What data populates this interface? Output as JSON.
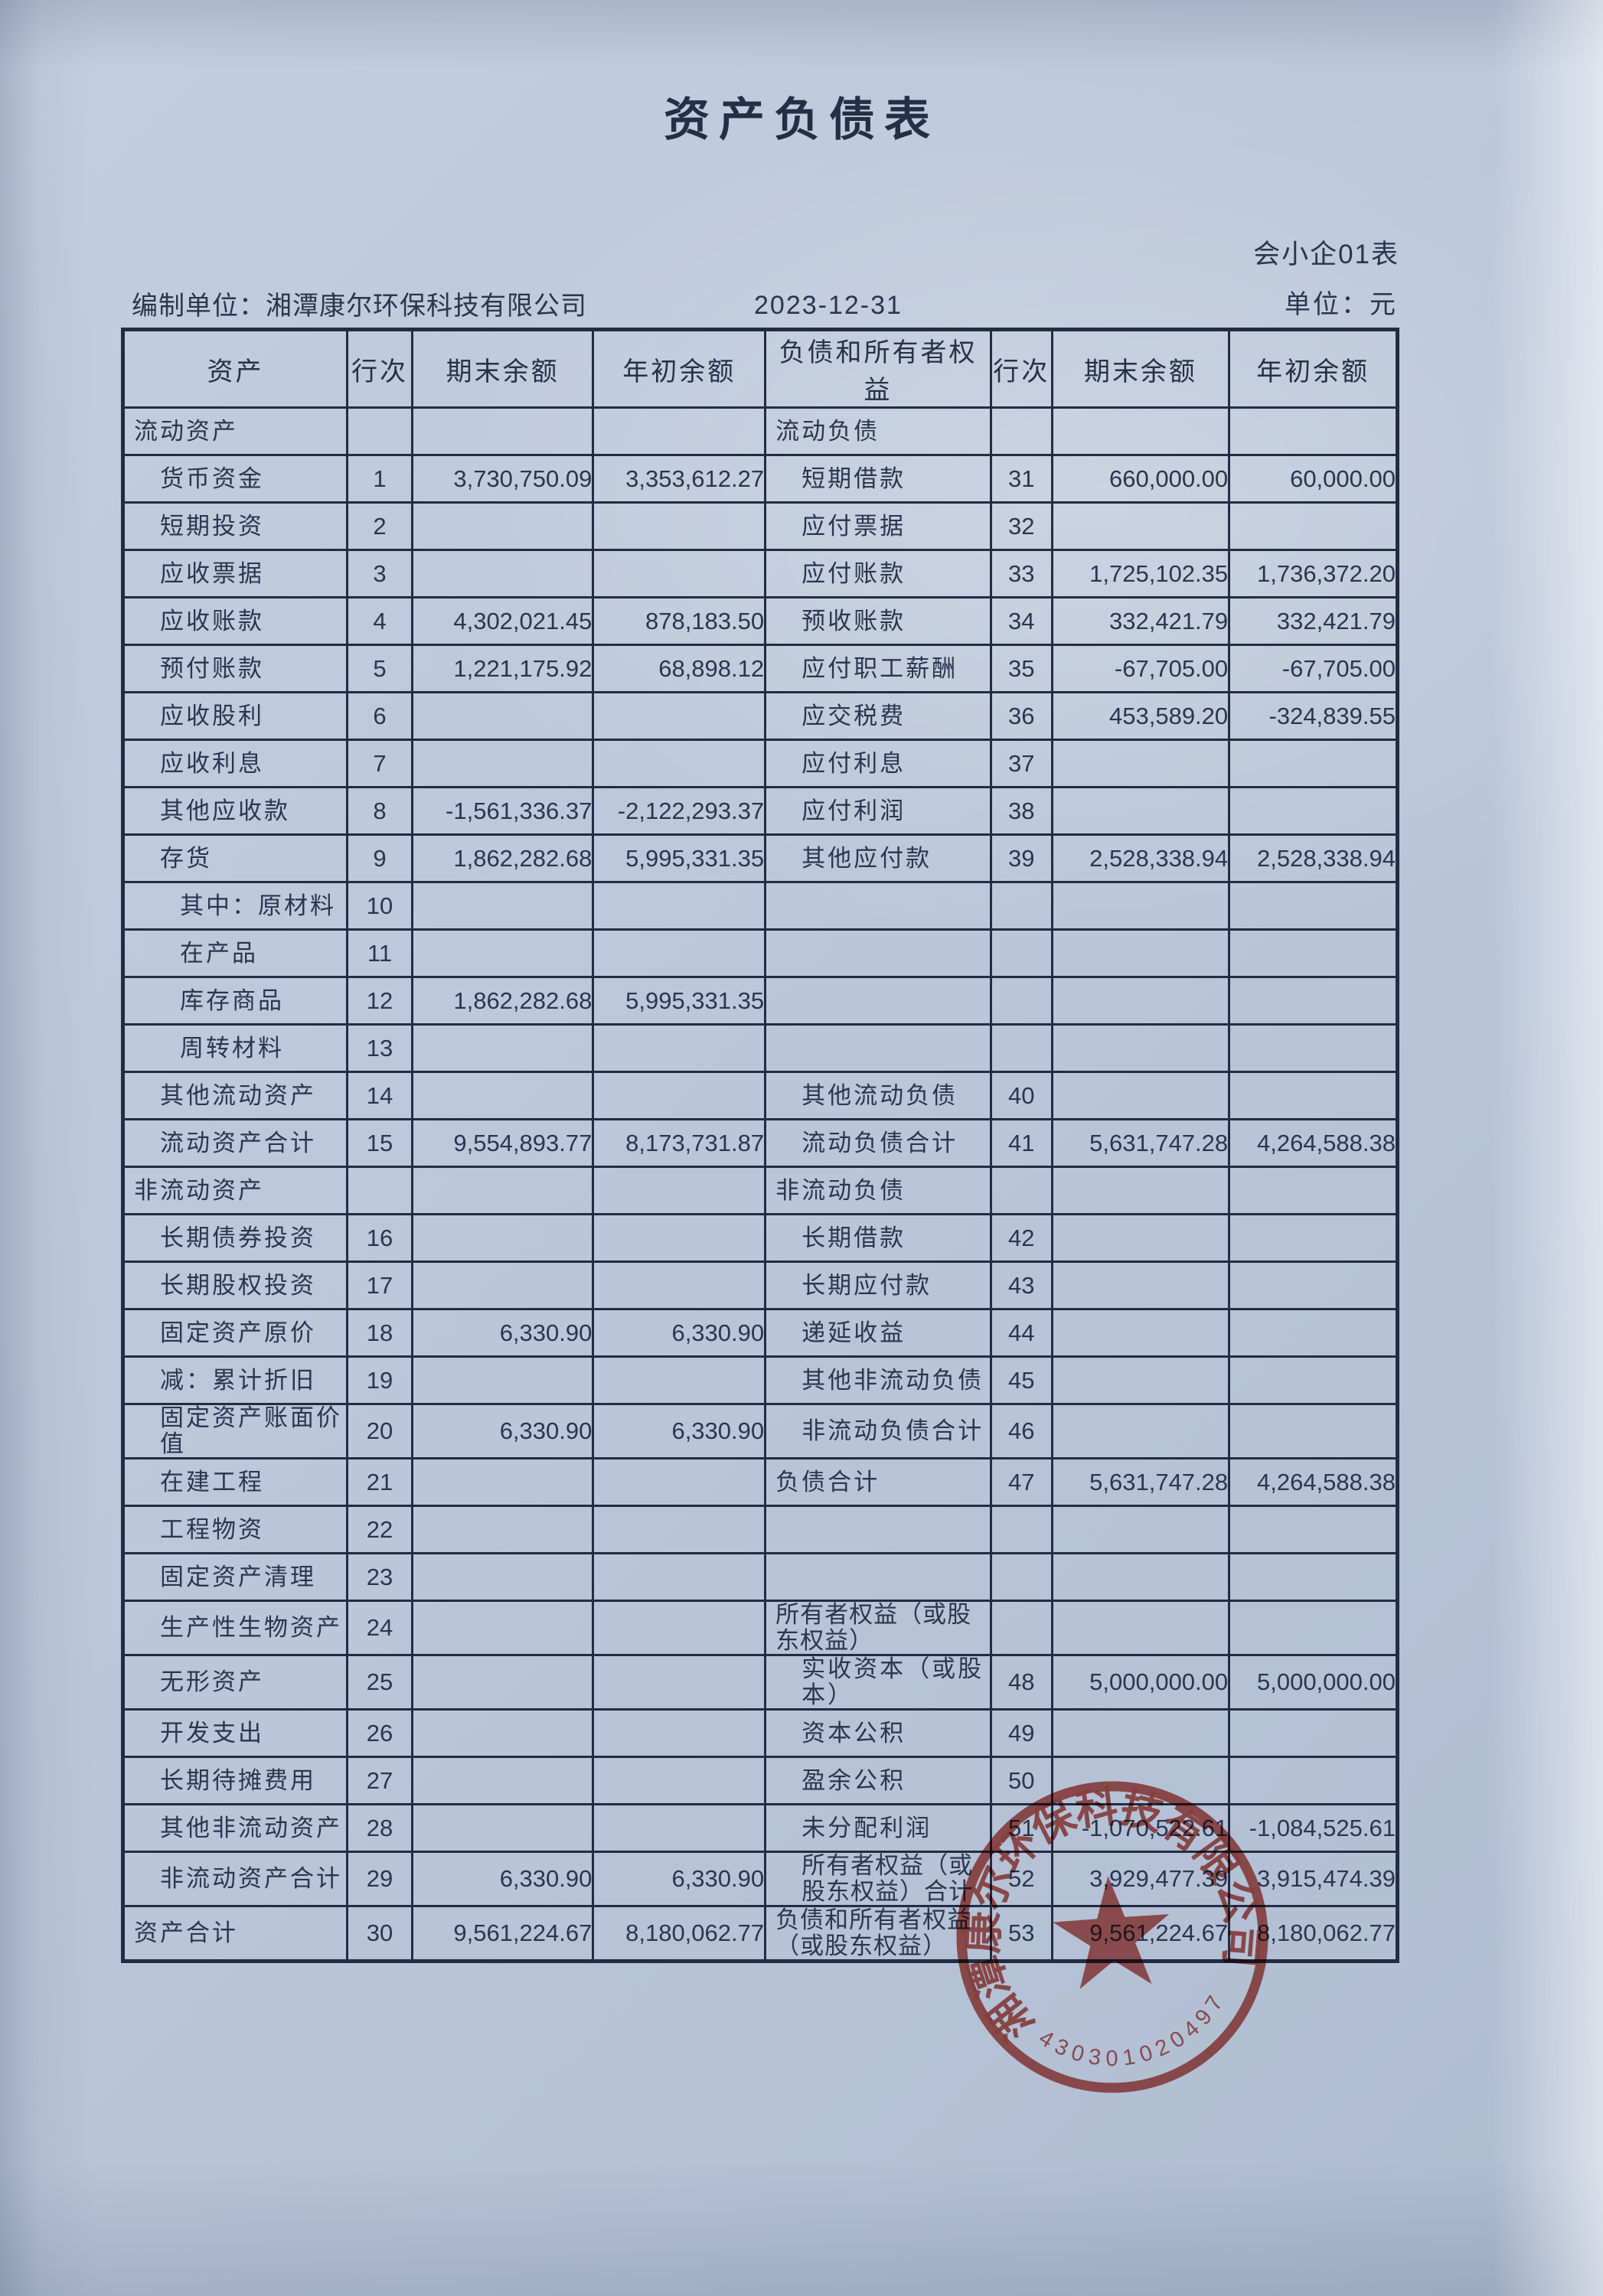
{
  "page": {
    "title": "资产负债表",
    "form_no": "会小企01表",
    "prepared_by_label": "编制单位：",
    "prepared_by": "湘潭康尔环保科技有限公司",
    "report_date": "2023-12-31",
    "unit_label": "单位：元"
  },
  "table": {
    "headers": [
      "资产",
      "行次",
      "期末余额",
      "年初余额",
      "负债和所有者权益",
      "行次",
      "期末余额",
      "年初余额"
    ],
    "rows": [
      {
        "a": "流动资产",
        "ai": 0,
        "ar": "",
        "ae": "",
        "ab": "",
        "l": "流动负债",
        "li": 0,
        "lr": "",
        "le": "",
        "lb": ""
      },
      {
        "a": "货币资金",
        "ai": 1,
        "ar": "1",
        "ae": "3,730,750.09",
        "ab": "3,353,612.27",
        "l": "短期借款",
        "li": 1,
        "lr": "31",
        "le": "660,000.00",
        "lb": "60,000.00"
      },
      {
        "a": "短期投资",
        "ai": 1,
        "ar": "2",
        "ae": "",
        "ab": "",
        "l": "应付票据",
        "li": 1,
        "lr": "32",
        "le": "",
        "lb": ""
      },
      {
        "a": "应收票据",
        "ai": 1,
        "ar": "3",
        "ae": "",
        "ab": "",
        "l": "应付账款",
        "li": 1,
        "lr": "33",
        "le": "1,725,102.35",
        "lb": "1,736,372.20"
      },
      {
        "a": "应收账款",
        "ai": 1,
        "ar": "4",
        "ae": "4,302,021.45",
        "ab": "878,183.50",
        "l": "预收账款",
        "li": 1,
        "lr": "34",
        "le": "332,421.79",
        "lb": "332,421.79"
      },
      {
        "a": "预付账款",
        "ai": 1,
        "ar": "5",
        "ae": "1,221,175.92",
        "ab": "68,898.12",
        "l": "应付职工薪酬",
        "li": 1,
        "lr": "35",
        "le": "-67,705.00",
        "lb": "-67,705.00"
      },
      {
        "a": "应收股利",
        "ai": 1,
        "ar": "6",
        "ae": "",
        "ab": "",
        "l": "应交税费",
        "li": 1,
        "lr": "36",
        "le": "453,589.20",
        "lb": "-324,839.55"
      },
      {
        "a": "应收利息",
        "ai": 1,
        "ar": "7",
        "ae": "",
        "ab": "",
        "l": "应付利息",
        "li": 1,
        "lr": "37",
        "le": "",
        "lb": ""
      },
      {
        "a": "其他应收款",
        "ai": 1,
        "ar": "8",
        "ae": "-1,561,336.37",
        "ab": "-2,122,293.37",
        "l": "应付利润",
        "li": 1,
        "lr": "38",
        "le": "",
        "lb": ""
      },
      {
        "a": "存货",
        "ai": 1,
        "ar": "9",
        "ae": "1,862,282.68",
        "ab": "5,995,331.35",
        "l": "其他应付款",
        "li": 1,
        "lr": "39",
        "le": "2,528,338.94",
        "lb": "2,528,338.94"
      },
      {
        "a": "其中：原材料",
        "ai": 2,
        "ar": "10",
        "ae": "",
        "ab": "",
        "l": "",
        "li": 1,
        "lr": "",
        "le": "",
        "lb": ""
      },
      {
        "a": "在产品",
        "ai": 2,
        "ar": "11",
        "ae": "",
        "ab": "",
        "l": "",
        "li": 1,
        "lr": "",
        "le": "",
        "lb": ""
      },
      {
        "a": "库存商品",
        "ai": 2,
        "ar": "12",
        "ae": "1,862,282.68",
        "ab": "5,995,331.35",
        "l": "",
        "li": 1,
        "lr": "",
        "le": "",
        "lb": ""
      },
      {
        "a": "周转材料",
        "ai": 2,
        "ar": "13",
        "ae": "",
        "ab": "",
        "l": "",
        "li": 1,
        "lr": "",
        "le": "",
        "lb": ""
      },
      {
        "a": "其他流动资产",
        "ai": 1,
        "ar": "14",
        "ae": "",
        "ab": "",
        "l": "其他流动负债",
        "li": 1,
        "lr": "40",
        "le": "",
        "lb": ""
      },
      {
        "a": "流动资产合计",
        "ai": 1,
        "ar": "15",
        "ae": "9,554,893.77",
        "ab": "8,173,731.87",
        "l": "流动负债合计",
        "li": 1,
        "lr": "41",
        "le": "5,631,747.28",
        "lb": "4,264,588.38"
      },
      {
        "a": "非流动资产",
        "ai": 0,
        "ar": "",
        "ae": "",
        "ab": "",
        "l": "非流动负债",
        "li": 0,
        "lr": "",
        "le": "",
        "lb": ""
      },
      {
        "a": "长期债券投资",
        "ai": 1,
        "ar": "16",
        "ae": "",
        "ab": "",
        "l": "长期借款",
        "li": 1,
        "lr": "42",
        "le": "",
        "lb": ""
      },
      {
        "a": "长期股权投资",
        "ai": 1,
        "ar": "17",
        "ae": "",
        "ab": "",
        "l": "长期应付款",
        "li": 1,
        "lr": "43",
        "le": "",
        "lb": ""
      },
      {
        "a": "固定资产原价",
        "ai": 1,
        "ar": "18",
        "ae": "6,330.90",
        "ab": "6,330.90",
        "l": "递延收益",
        "li": 1,
        "lr": "44",
        "le": "",
        "lb": ""
      },
      {
        "a": "减：累计折旧",
        "ai": 1,
        "ar": "19",
        "ae": "",
        "ab": "",
        "l": "其他非流动负债",
        "li": 1,
        "lr": "45",
        "le": "",
        "lb": ""
      },
      {
        "a": "固定资产账面价值",
        "ai": 1,
        "ar": "20",
        "ae": "6,330.90",
        "ab": "6,330.90",
        "l": "非流动负债合计",
        "li": 1,
        "lr": "46",
        "le": "",
        "lb": ""
      },
      {
        "a": "在建工程",
        "ai": 1,
        "ar": "21",
        "ae": "",
        "ab": "",
        "l": "负债合计",
        "li": 0,
        "lr": "47",
        "le": "5,631,747.28",
        "lb": "4,264,588.38"
      },
      {
        "a": "工程物资",
        "ai": 1,
        "ar": "22",
        "ae": "",
        "ab": "",
        "l": "",
        "li": 1,
        "lr": "",
        "le": "",
        "lb": ""
      },
      {
        "a": "固定资产清理",
        "ai": 1,
        "ar": "23",
        "ae": "",
        "ab": "",
        "l": "",
        "li": 1,
        "lr": "",
        "le": "",
        "lb": ""
      },
      {
        "a": "生产性生物资产",
        "ai": 1,
        "ar": "24",
        "ae": "",
        "ab": "",
        "l": "所有者权益（或股东权益）",
        "li": 0,
        "lr": "",
        "le": "",
        "lb": ""
      },
      {
        "a": "无形资产",
        "ai": 1,
        "ar": "25",
        "ae": "",
        "ab": "",
        "l": "实收资本（或股本）",
        "li": 1,
        "lr": "48",
        "le": "5,000,000.00",
        "lb": "5,000,000.00"
      },
      {
        "a": "开发支出",
        "ai": 1,
        "ar": "26",
        "ae": "",
        "ab": "",
        "l": "资本公积",
        "li": 1,
        "lr": "49",
        "le": "",
        "lb": ""
      },
      {
        "a": "长期待摊费用",
        "ai": 1,
        "ar": "27",
        "ae": "",
        "ab": "",
        "l": "盈余公积",
        "li": 1,
        "lr": "50",
        "le": "",
        "lb": ""
      },
      {
        "a": "其他非流动资产",
        "ai": 1,
        "ar": "28",
        "ae": "",
        "ab": "",
        "l": "未分配利润",
        "li": 1,
        "lr": "51",
        "le": "-1,070,522.61",
        "lb": "-1,084,525.61"
      },
      {
        "a": "非流动资产合计",
        "ai": 1,
        "ar": "29",
        "ae": "6,330.90",
        "ab": "6,330.90",
        "l": "所有者权益（或股东权益）合计",
        "li": 1,
        "lr": "52",
        "le": "3,929,477.39",
        "lb": "3,915,474.39"
      },
      {
        "a": "资产合计",
        "ai": 0,
        "ar": "30",
        "ae": "9,561,224.67",
        "ab": "8,180,062.77",
        "l": "负债和所有者权益（或股东权益）",
        "li": 0,
        "lr": "53",
        "le": "9,561,224.67",
        "lb": "8,180,062.77"
      }
    ]
  },
  "stamp": {
    "company": "湘潭康尔环保科技有限公司",
    "serial": "4303010204976",
    "color": "#b5433a"
  }
}
